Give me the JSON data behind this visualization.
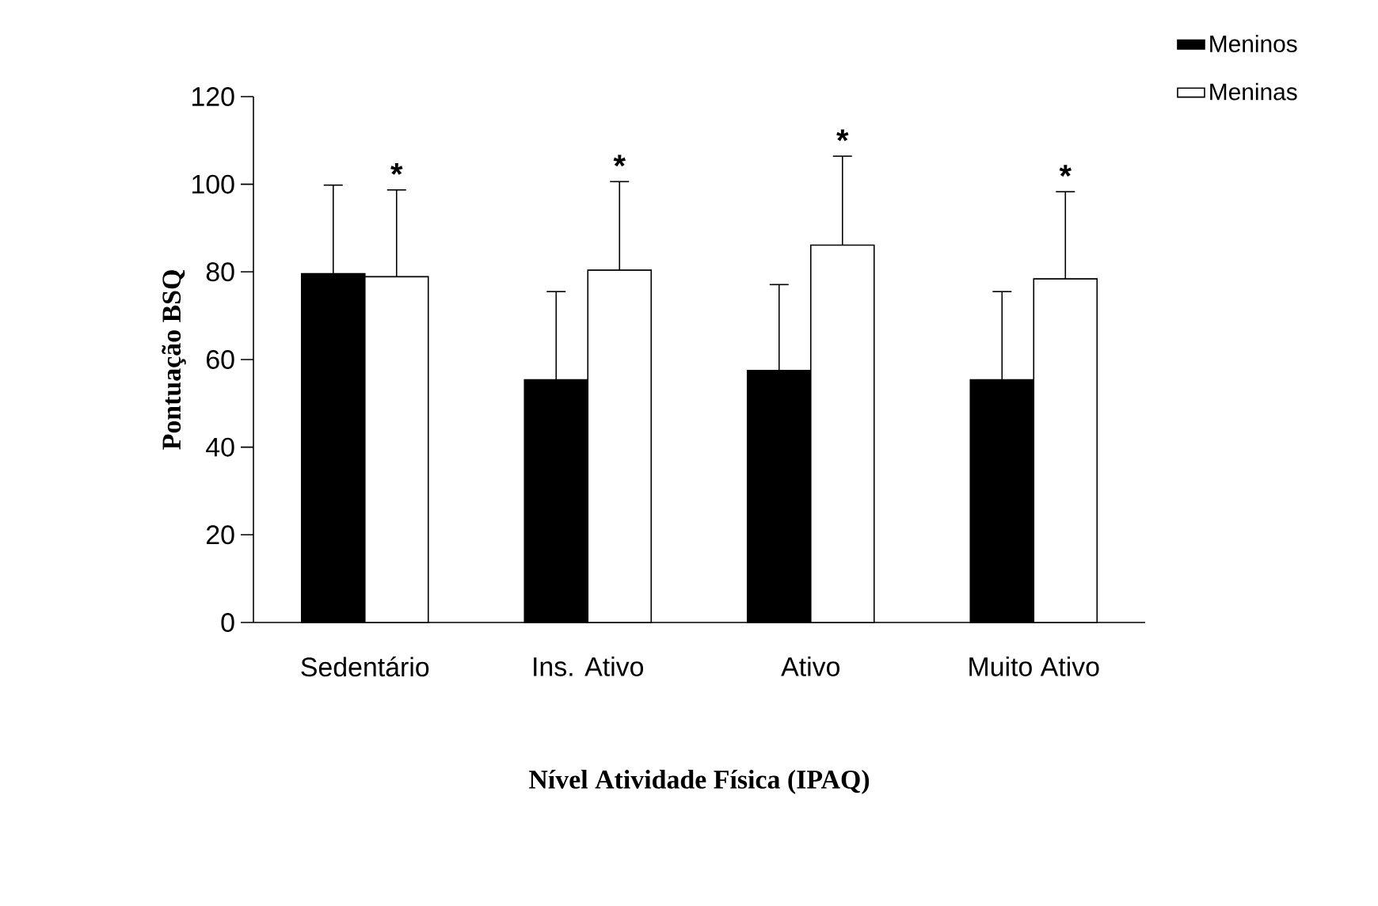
{
  "chart_data": {
    "type": "bar",
    "categories": [
      "Sedentário",
      "Ins. Ativo",
      "Ativo",
      "Muito Ativo"
    ],
    "series": [
      {
        "name": "Meninos",
        "color": "#000000",
        "values": [
          79.6,
          55.4,
          57.5,
          55.4
        ],
        "errors": [
          [
            79.6,
            99.8
          ],
          [
            55.4,
            75.5
          ],
          [
            57.5,
            77.1
          ],
          [
            55.4,
            75.5
          ]
        ]
      },
      {
        "name": "Meninas",
        "color": "#ffffff",
        "values": [
          78.9,
          80.4,
          86.1,
          78.4
        ],
        "errors": [
          [
            78.9,
            98.7
          ],
          [
            80.4,
            100.6
          ],
          [
            86.1,
            106.4
          ],
          [
            78.4,
            98.3
          ]
        ]
      }
    ],
    "xlabel": "Nível Atividade Física (IPAQ)",
    "ylabel": "Pontuação BSQ",
    "ylim": [
      0,
      120
    ],
    "yticks": [
      0,
      20,
      40,
      60,
      80,
      100,
      120
    ],
    "annotations": [
      "*",
      "*",
      "*",
      "*"
    ],
    "grid": false,
    "legend": "top right"
  }
}
